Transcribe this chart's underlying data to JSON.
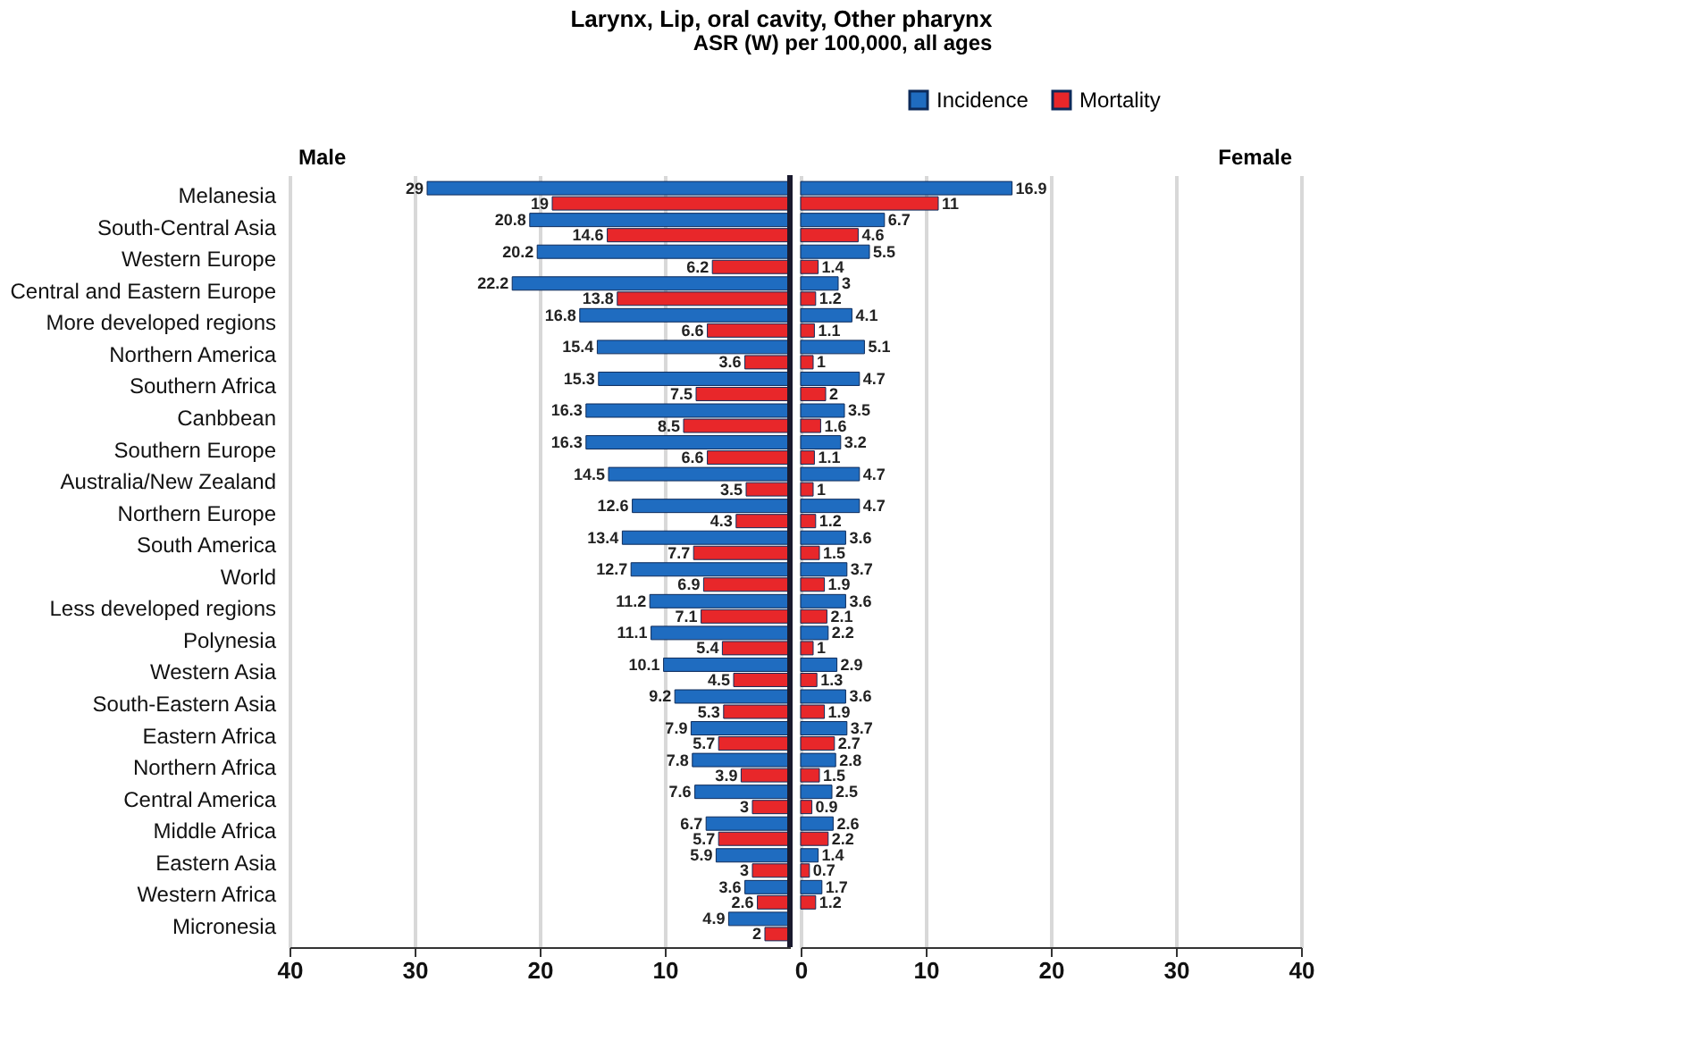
{
  "chart_data": [
    {
      "type": "bar",
      "orientation": "horizontal",
      "title": "Larynx, Lip, oral cavity, Other pharynx",
      "subtitle": "ASR (W) per 100,000, all ages",
      "annotations": [
        "Male"
      ],
      "categories": [
        "Melanesia",
        "South-Central Asia",
        "Western Europe",
        "Central and Eastern Europe",
        "More developed regions",
        "Northern America",
        "Southern Africa",
        "Canbbean",
        "Southern Europe",
        "Australia/New Zealand",
        "Northern Europe",
        "South America",
        "World",
        "Less developed regions",
        "Polynesia",
        "Western Asia",
        "South-Eastern Asia",
        "Eastern Africa",
        "Northern Africa",
        "Central America",
        "Middle Africa",
        "Eastern Asia",
        "Western Africa",
        "Micronesia"
      ],
      "series": [
        {
          "color": "#1f6cc0",
          "values": [
            29,
            20.8,
            20.2,
            22.2,
            16.8,
            15.4,
            15.3,
            16.3,
            16.3,
            14.5,
            12.6,
            13.4,
            12.7,
            11.2,
            11.1,
            10.1,
            9.2,
            7.9,
            7.8,
            7.6,
            6.7,
            5.9,
            3.6,
            4.9
          ]
        },
        {
          "color": "#e8272a",
          "values": [
            19,
            14.6,
            6.2,
            13.8,
            6.6,
            3.6,
            7.5,
            8.5,
            6.6,
            3.5,
            4.3,
            7.7,
            6.9,
            7.1,
            5.4,
            4.5,
            5.3,
            5.7,
            3.9,
            3,
            5.7,
            3,
            2.6,
            2
          ]
        }
      ],
      "data_labels": true,
      "xlim": [
        40,
        0
      ],
      "xticks": [
        40,
        30,
        20,
        10
      ],
      "ref_lines": [
        {
          "axis": "x",
          "value": 0,
          "color": "#1a1a2e"
        }
      ],
      "grid": "x"
    },
    {
      "type": "bar",
      "orientation": "horizontal",
      "annotations": [
        "Female"
      ],
      "categories": [
        "Melanesia",
        "South-Central Asia",
        "Western Europe",
        "Central and Eastern Europe",
        "More developed regions",
        "Northern America",
        "Southern Africa",
        "Canbbean",
        "Southern Europe",
        "Australia/New Zealand",
        "Northern Europe",
        "South America",
        "World",
        "Less developed regions",
        "Polynesia",
        "Western Asia",
        "South-Eastern Asia",
        "Eastern Africa",
        "Northern Africa",
        "Central America",
        "Middle Africa",
        "Eastern Asia",
        "Western Africa",
        "Micronesia"
      ],
      "series": [
        {
          "name": "Incidence",
          "color": "#1f6cc0",
          "values": [
            16.9,
            6.7,
            5.5,
            3,
            4.1,
            5.1,
            4.7,
            3.5,
            3.2,
            4.7,
            4.7,
            3.6,
            3.7,
            3.6,
            2.2,
            2.9,
            3.6,
            3.7,
            2.8,
            2.5,
            2.6,
            1.4,
            1.7,
            null
          ]
        },
        {
          "name": "Mortality",
          "color": "#e8272a",
          "values": [
            11,
            4.6,
            1.4,
            1.2,
            1.1,
            1,
            2,
            1.6,
            1.1,
            1,
            1.2,
            1.5,
            1.9,
            2.1,
            1,
            1.3,
            1.9,
            2.7,
            1.5,
            0.9,
            2.2,
            0.7,
            1.2,
            null
          ]
        }
      ],
      "data_labels": true,
      "xlim": [
        0,
        40
      ],
      "xticks": [
        0,
        10,
        20,
        30,
        40
      ],
      "grid": "x",
      "legend": "top right",
      "tick_labels": "x"
    }
  ]
}
